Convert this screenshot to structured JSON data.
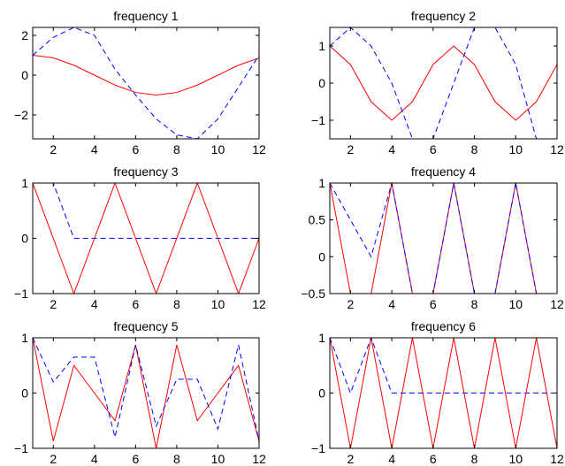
{
  "chart_data": [
    {
      "type": "line",
      "title": "frequency 1",
      "x": [
        1,
        2,
        3,
        4,
        5,
        6,
        7,
        8,
        9,
        10,
        11,
        12
      ],
      "xlim": [
        1,
        12
      ],
      "ylim": [
        -3.2,
        2.4
      ],
      "xticks": [
        2,
        4,
        6,
        8,
        10,
        12
      ],
      "yticks": [
        -2,
        0,
        2
      ],
      "xtick_labels": [
        "2",
        "4",
        "6",
        "8",
        "10",
        "12"
      ],
      "ytick_labels": [
        "−2",
        "0",
        "2"
      ],
      "series": [
        {
          "color": "#ff0000",
          "style": "solid",
          "values": [
            1.0,
            0.87,
            0.5,
            0.0,
            -0.5,
            -0.87,
            -1.0,
            -0.87,
            -0.5,
            0.0,
            0.5,
            0.87
          ]
        },
        {
          "color": "#0000ff",
          "style": "dashed",
          "values": [
            1.0,
            1.9,
            2.4,
            2.0,
            0.3,
            -1.0,
            -2.2,
            -3.0,
            -3.2,
            -2.2,
            -0.6,
            1.0
          ]
        }
      ]
    },
    {
      "type": "line",
      "title": "frequency 2",
      "x": [
        1,
        2,
        3,
        4,
        5,
        6,
        7,
        8,
        9,
        10,
        11,
        12
      ],
      "xlim": [
        1,
        12
      ],
      "ylim": [
        -1.5,
        1.5
      ],
      "xticks": [
        2,
        4,
        6,
        8,
        10,
        12
      ],
      "yticks": [
        -1,
        0,
        1
      ],
      "xtick_labels": [
        "2",
        "4",
        "6",
        "8",
        "10",
        "12"
      ],
      "ytick_labels": [
        "−1",
        "0",
        "1"
      ],
      "series": [
        {
          "color": "#ff0000",
          "style": "solid",
          "values": [
            1.0,
            0.5,
            -0.5,
            -1.0,
            -0.5,
            0.5,
            1.0,
            0.5,
            -0.5,
            -1.0,
            -0.5,
            0.5
          ]
        },
        {
          "color": "#0000ff",
          "style": "dashed",
          "values": [
            1.0,
            1.5,
            1.0,
            0.0,
            -1.5,
            -1.5,
            0.0,
            1.5,
            1.5,
            0.5,
            -1.5,
            -1.5
          ]
        }
      ]
    },
    {
      "type": "line",
      "title": "frequency 3",
      "x": [
        1,
        2,
        3,
        4,
        5,
        6,
        7,
        8,
        9,
        10,
        11,
        12
      ],
      "xlim": [
        1,
        12
      ],
      "ylim": [
        -1,
        1
      ],
      "xticks": [
        2,
        4,
        6,
        8,
        10,
        12
      ],
      "yticks": [
        -1,
        0,
        1
      ],
      "xtick_labels": [
        "2",
        "4",
        "6",
        "8",
        "10",
        "12"
      ],
      "ytick_labels": [
        "−1",
        "0",
        "1"
      ],
      "series": [
        {
          "color": "#ff0000",
          "style": "solid",
          "values": [
            1,
            0,
            -1,
            0,
            1,
            0,
            -1,
            0,
            1,
            0,
            -1,
            0
          ]
        },
        {
          "color": "#0000ff",
          "style": "dashed",
          "values": [
            1,
            1,
            0,
            0,
            0,
            0,
            0,
            0,
            0,
            0,
            0,
            0
          ]
        }
      ]
    },
    {
      "type": "line",
      "title": "frequency 4",
      "x": [
        1,
        2,
        3,
        4,
        5,
        6,
        7,
        8,
        9,
        10,
        11,
        12
      ],
      "xlim": [
        1,
        12
      ],
      "ylim": [
        -0.5,
        1
      ],
      "xticks": [
        2,
        4,
        6,
        8,
        10,
        12
      ],
      "yticks": [
        -0.5,
        0,
        0.5,
        1
      ],
      "xtick_labels": [
        "2",
        "4",
        "6",
        "8",
        "10",
        "12"
      ],
      "ytick_labels": [
        "−0.5",
        "0",
        "0.5",
        "1"
      ],
      "series": [
        {
          "color": "#ff0000",
          "style": "solid",
          "values": [
            1,
            -0.5,
            -0.5,
            1,
            -0.5,
            -0.5,
            1,
            -0.5,
            -0.5,
            1,
            -0.5,
            -0.5
          ]
        },
        {
          "color": "#0000ff",
          "style": "dashed",
          "values": [
            1,
            0.5,
            0.0,
            1,
            -0.5,
            -0.5,
            1,
            -0.5,
            -0.5,
            1,
            -0.5,
            -0.5
          ]
        }
      ]
    },
    {
      "type": "line",
      "title": "frequency 5",
      "x": [
        1,
        2,
        3,
        4,
        5,
        6,
        7,
        8,
        9,
        10,
        11,
        12
      ],
      "xlim": [
        1,
        12
      ],
      "ylim": [
        -1,
        1
      ],
      "xticks": [
        2,
        4,
        6,
        8,
        10,
        12
      ],
      "yticks": [
        -1,
        0,
        1
      ],
      "xtick_labels": [
        "2",
        "4",
        "6",
        "8",
        "10",
        "12"
      ],
      "ytick_labels": [
        "−1",
        "0",
        "1"
      ],
      "series": [
        {
          "color": "#ff0000",
          "style": "solid",
          "values": [
            1,
            -0.87,
            0.5,
            0.0,
            -0.5,
            0.87,
            -1,
            0.87,
            -0.5,
            0.0,
            0.5,
            -0.87
          ]
        },
        {
          "color": "#0000ff",
          "style": "dashed",
          "values": [
            1,
            0.2,
            0.65,
            0.65,
            -0.8,
            0.87,
            -0.6,
            0.25,
            0.25,
            -0.65,
            0.87,
            -0.87
          ]
        }
      ]
    },
    {
      "type": "line",
      "title": "frequency 6",
      "x": [
        1,
        2,
        3,
        4,
        5,
        6,
        7,
        8,
        9,
        10,
        11,
        12
      ],
      "xlim": [
        1,
        12
      ],
      "ylim": [
        -1,
        1
      ],
      "xticks": [
        2,
        4,
        6,
        8,
        10,
        12
      ],
      "yticks": [
        -1,
        0,
        1
      ],
      "xtick_labels": [
        "2",
        "4",
        "6",
        "8",
        "10",
        "12"
      ],
      "ytick_labels": [
        "−1",
        "0",
        "1"
      ],
      "series": [
        {
          "color": "#ff0000",
          "style": "solid",
          "values": [
            1,
            -1,
            1,
            -1,
            1,
            -1,
            1,
            -1,
            1,
            -1,
            1,
            -1
          ]
        },
        {
          "color": "#0000ff",
          "style": "dashed",
          "values": [
            1,
            0,
            1,
            0,
            0,
            0,
            0,
            0,
            0,
            0,
            0,
            0
          ]
        }
      ]
    }
  ]
}
